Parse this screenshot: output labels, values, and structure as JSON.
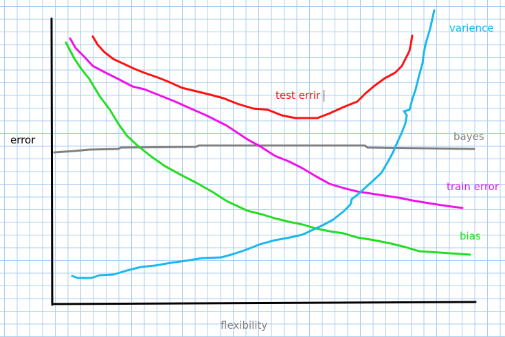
{
  "labels": {
    "y_axis": "error",
    "x_axis": "flexibility",
    "test_error": "test errir",
    "variance": "varience",
    "bayes": "bayes",
    "train_error": "train error",
    "bias": "bias"
  },
  "colors": {
    "axes": "#000000",
    "test_error": "#ff1010",
    "variance": "#19b8ee",
    "bayes": "#808080",
    "train_error": "#ee11ee",
    "bias": "#22dd22",
    "grid": "#a9cdf0"
  }
}
